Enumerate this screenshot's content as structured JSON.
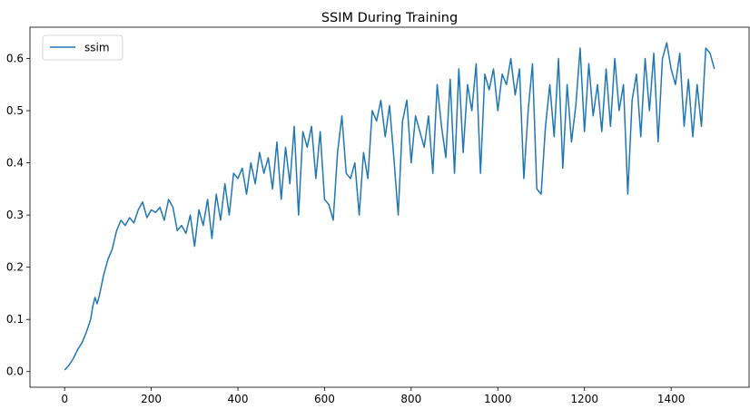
{
  "chart_data": {
    "type": "line",
    "title": "SSIM During Training",
    "xlabel": "",
    "ylabel": "",
    "xlim": [
      -80,
      1580
    ],
    "ylim": [
      -0.03,
      0.66
    ],
    "x_ticks": [
      0,
      200,
      400,
      600,
      800,
      1000,
      1200,
      1400
    ],
    "x_tick_labels": [
      "0",
      "200",
      "400",
      "600",
      "800",
      "1000",
      "1200",
      "1400"
    ],
    "y_ticks": [
      0.0,
      0.1,
      0.2,
      0.3,
      0.4,
      0.5,
      0.6
    ],
    "y_tick_labels": [
      "0.0",
      "0.1",
      "0.2",
      "0.3",
      "0.4",
      "0.5",
      "0.6"
    ],
    "grid": false,
    "legend_position": "upper-left",
    "series": [
      {
        "name": "ssim",
        "color": "#1f77b4",
        "x": [
          0,
          10,
          20,
          30,
          40,
          50,
          60,
          65,
          70,
          75,
          80,
          90,
          100,
          110,
          120,
          130,
          140,
          150,
          160,
          170,
          180,
          190,
          200,
          210,
          220,
          230,
          240,
          250,
          260,
          270,
          280,
          290,
          300,
          310,
          320,
          330,
          340,
          350,
          360,
          370,
          380,
          390,
          400,
          410,
          420,
          430,
          440,
          450,
          460,
          470,
          480,
          490,
          500,
          510,
          520,
          530,
          540,
          550,
          560,
          570,
          580,
          590,
          600,
          610,
          620,
          630,
          640,
          650,
          660,
          670,
          680,
          690,
          700,
          710,
          720,
          730,
          740,
          750,
          760,
          770,
          780,
          790,
          800,
          810,
          820,
          830,
          840,
          850,
          860,
          870,
          880,
          890,
          900,
          910,
          920,
          930,
          940,
          950,
          960,
          970,
          980,
          990,
          1000,
          1010,
          1020,
          1030,
          1040,
          1050,
          1060,
          1070,
          1080,
          1090,
          1100,
          1110,
          1120,
          1130,
          1140,
          1150,
          1160,
          1170,
          1180,
          1190,
          1200,
          1210,
          1220,
          1230,
          1240,
          1250,
          1260,
          1270,
          1280,
          1290,
          1300,
          1310,
          1320,
          1330,
          1340,
          1350,
          1360,
          1370,
          1380,
          1390,
          1400,
          1410,
          1420,
          1430,
          1440,
          1450,
          1460,
          1470,
          1480,
          1490,
          1500
        ],
        "y": [
          0.003,
          0.012,
          0.025,
          0.042,
          0.055,
          0.075,
          0.1,
          0.125,
          0.142,
          0.13,
          0.145,
          0.185,
          0.215,
          0.235,
          0.27,
          0.29,
          0.28,
          0.295,
          0.285,
          0.31,
          0.325,
          0.295,
          0.31,
          0.305,
          0.315,
          0.29,
          0.33,
          0.315,
          0.27,
          0.28,
          0.265,
          0.3,
          0.24,
          0.31,
          0.28,
          0.33,
          0.255,
          0.34,
          0.29,
          0.36,
          0.3,
          0.38,
          0.37,
          0.39,
          0.34,
          0.4,
          0.36,
          0.42,
          0.38,
          0.41,
          0.35,
          0.44,
          0.33,
          0.43,
          0.36,
          0.47,
          0.3,
          0.46,
          0.43,
          0.47,
          0.37,
          0.46,
          0.33,
          0.32,
          0.29,
          0.42,
          0.49,
          0.38,
          0.37,
          0.4,
          0.3,
          0.42,
          0.37,
          0.5,
          0.48,
          0.52,
          0.45,
          0.51,
          0.41,
          0.3,
          0.48,
          0.52,
          0.4,
          0.49,
          0.46,
          0.43,
          0.49,
          0.38,
          0.55,
          0.47,
          0.41,
          0.56,
          0.38,
          0.58,
          0.42,
          0.55,
          0.5,
          0.59,
          0.38,
          0.57,
          0.54,
          0.58,
          0.5,
          0.57,
          0.55,
          0.6,
          0.53,
          0.58,
          0.37,
          0.5,
          0.59,
          0.35,
          0.34,
          0.47,
          0.55,
          0.45,
          0.6,
          0.39,
          0.55,
          0.44,
          0.51,
          0.62,
          0.46,
          0.59,
          0.49,
          0.55,
          0.46,
          0.58,
          0.47,
          0.6,
          0.5,
          0.55,
          0.34,
          0.52,
          0.57,
          0.45,
          0.6,
          0.5,
          0.61,
          0.44,
          0.6,
          0.63,
          0.58,
          0.55,
          0.61,
          0.47,
          0.56,
          0.45,
          0.55,
          0.47,
          0.62,
          0.61,
          0.58
        ]
      }
    ]
  }
}
